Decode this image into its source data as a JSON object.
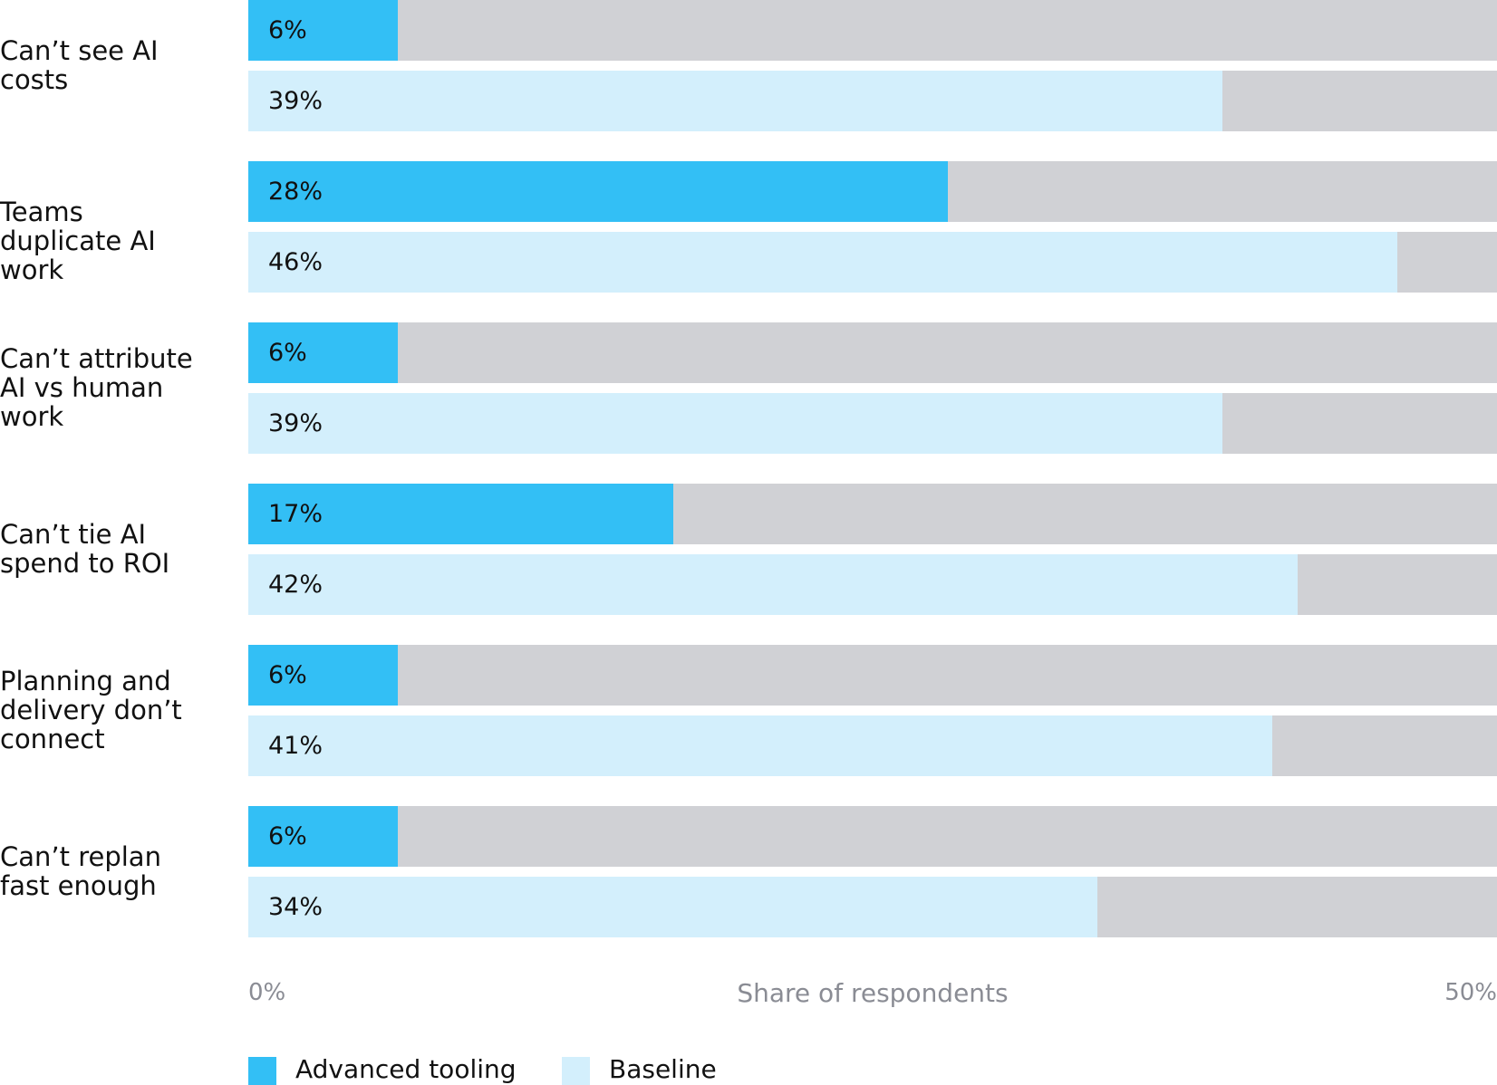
{
  "chart_data": {
    "type": "bar",
    "orientation": "horizontal",
    "categories": [
      "Can’t see AI costs",
      "Teams duplicate AI work",
      "Can’t attribute AI vs human work",
      "Can’t  tie AI spend to ROI",
      "Planning and delivery don’t connect",
      "Can’t replan fast enough"
    ],
    "series": [
      {
        "name": "Advanced tooling",
        "color": "#33bff5",
        "values": [
          6,
          28,
          6,
          17,
          6,
          6
        ],
        "value_labels": [
          "6%",
          "28%",
          "6%",
          "17%",
          "6%",
          "6%"
        ]
      },
      {
        "name": "Baseline",
        "color": "#d3effc",
        "values": [
          39,
          46,
          39,
          42,
          41,
          34
        ],
        "value_labels": [
          "39%",
          "46%",
          "39%",
          "42%",
          "41%",
          "34%"
        ]
      }
    ],
    "track_color": "#d0d1d5",
    "xlabel": "Share of respondents",
    "xlim": [
      0,
      50
    ],
    "xticks": [
      {
        "value": 0,
        "label": "0%"
      },
      {
        "value": 50,
        "label": "50%"
      }
    ]
  }
}
